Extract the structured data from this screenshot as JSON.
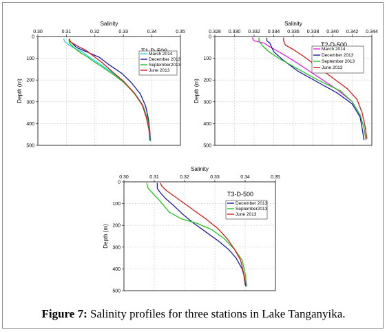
{
  "caption": {
    "label": "Figure 7:",
    "text": " Salinity profiles for three stations in Lake Tanganyika."
  },
  "chart_data": [
    {
      "type": "line",
      "title": "T1-D-500",
      "xlabel": "Salinity",
      "ylabel": "Depth (m)",
      "xlim": [
        0.3,
        0.35
      ],
      "ylim": [
        0,
        500
      ],
      "x_ticks": [
        "0.30",
        "0.31",
        "0.32",
        "0.33",
        "0.34",
        "0.35"
      ],
      "y_ticks": [
        "0",
        "100",
        "200",
        "300",
        "400",
        "500"
      ],
      "y_inverted": true,
      "legend_position": "right",
      "series": [
        {
          "name": "March 2014",
          "color": "#22d3ee",
          "x": [
            0.309,
            0.3095,
            0.311,
            0.313,
            0.3155,
            0.3175,
            0.321,
            0.3255,
            0.33,
            0.334,
            0.337,
            0.3385,
            0.339,
            0.3392
          ],
          "y": [
            10,
            25,
            40,
            55,
            70,
            90,
            120,
            160,
            210,
            260,
            320,
            380,
            440,
            480
          ]
        },
        {
          "name": "December 2013",
          "color": "#1a1aa6",
          "x": [
            0.311,
            0.311,
            0.312,
            0.3135,
            0.317,
            0.3215,
            0.325,
            0.3295,
            0.333,
            0.336,
            0.3378,
            0.3388,
            0.3393,
            0.3395
          ],
          "y": [
            10,
            20,
            30,
            50,
            70,
            95,
            130,
            170,
            215,
            265,
            320,
            380,
            440,
            480
          ]
        },
        {
          "name": "September2013",
          "color": "#22c322",
          "x": [
            0.311,
            0.311,
            0.313,
            0.315,
            0.3175,
            0.319,
            0.322,
            0.3265,
            0.3305,
            0.334,
            0.3368,
            0.3385,
            0.3392,
            0.3394
          ],
          "y": [
            10,
            30,
            55,
            75,
            95,
            110,
            135,
            175,
            215,
            265,
            320,
            380,
            440,
            480
          ]
        },
        {
          "name": "June 2013",
          "color": "#d61a1a",
          "x": [
            0.311,
            0.3115,
            0.314,
            0.317,
            0.3195,
            0.3225,
            0.326,
            0.33,
            0.3335,
            0.3365,
            0.338,
            0.339,
            0.3393
          ],
          "y": [
            10,
            25,
            45,
            65,
            90,
            120,
            160,
            205,
            255,
            310,
            370,
            430,
            475
          ]
        }
      ]
    },
    {
      "type": "line",
      "title": "T2-D-500",
      "xlabel": "Salinity",
      "ylabel": "Depth (m)",
      "xlim": [
        0.328,
        0.344
      ],
      "ylim": [
        0,
        500
      ],
      "x_ticks": [
        "0.328",
        "0.330",
        "0.332",
        "0.334",
        "0.336",
        "0.338",
        "0.340",
        "0.342",
        "0.344"
      ],
      "y_ticks": [
        "0",
        "100",
        "200",
        "300",
        "400",
        "500"
      ],
      "y_inverted": true,
      "legend_position": "right",
      "series": [
        {
          "name": "March 2014",
          "color": "#e020e0",
          "x": [
            0.3318,
            0.332,
            0.333,
            0.3335,
            0.3345,
            0.336,
            0.3375,
            0.339,
            0.3405,
            0.342,
            0.3428,
            0.3432,
            0.3434
          ],
          "y": [
            5,
            20,
            30,
            45,
            70,
            110,
            155,
            200,
            245,
            300,
            360,
            420,
            475
          ]
        },
        {
          "name": "December 2013",
          "color": "#1a1aa6",
          "x": [
            0.3333,
            0.3333,
            0.3336,
            0.3338,
            0.334,
            0.335,
            0.3365,
            0.3385,
            0.3405,
            0.342,
            0.3428,
            0.343,
            0.3432
          ],
          "y": [
            5,
            20,
            30,
            50,
            70,
            110,
            160,
            210,
            260,
            310,
            370,
            420,
            475
          ]
        },
        {
          "name": "September 2013",
          "color": "#22c322",
          "x": [
            0.3325,
            0.3325,
            0.3328,
            0.3335,
            0.3345,
            0.3365,
            0.3385,
            0.3408,
            0.342,
            0.3428,
            0.3432,
            0.3434
          ],
          "y": [
            5,
            20,
            40,
            70,
            100,
            150,
            200,
            250,
            300,
            360,
            420,
            475
          ]
        },
        {
          "name": "June 2013",
          "color": "#d61a1a",
          "x": [
            0.335,
            0.335,
            0.3352,
            0.336,
            0.337,
            0.3385,
            0.34,
            0.3415,
            0.3425,
            0.343,
            0.3433,
            0.3435
          ],
          "y": [
            5,
            20,
            40,
            60,
            90,
            140,
            190,
            240,
            290,
            350,
            410,
            470
          ]
        }
      ]
    },
    {
      "type": "line",
      "title": "T3-D-500",
      "xlabel": "Salinity",
      "ylabel": "Depth (m)",
      "xlim": [
        0.3,
        0.35
      ],
      "ylim": [
        0,
        500
      ],
      "x_ticks": [
        "0.30",
        "0.31",
        "0.32",
        "0.33",
        "0.34",
        "0.35"
      ],
      "y_ticks": [
        "0",
        "100",
        "200",
        "300",
        "400",
        "500"
      ],
      "y_inverted": true,
      "legend_position": "right",
      "series": [
        {
          "name": "December 2013",
          "color": "#1a1aa6",
          "x": [
            0.311,
            0.311,
            0.312,
            0.314,
            0.3165,
            0.3195,
            0.323,
            0.327,
            0.331,
            0.3345,
            0.337,
            0.339,
            0.3398,
            0.3402
          ],
          "y": [
            5,
            30,
            50,
            80,
            110,
            150,
            190,
            230,
            270,
            310,
            350,
            400,
            440,
            480
          ]
        },
        {
          "name": "September2013",
          "color": "#22c322",
          "x": [
            0.3075,
            0.308,
            0.31,
            0.312,
            0.315,
            0.319,
            0.324,
            0.329,
            0.333,
            0.3365,
            0.339,
            0.34,
            0.3405
          ],
          "y": [
            5,
            30,
            60,
            90,
            140,
            170,
            190,
            220,
            260,
            310,
            360,
            420,
            480
          ]
        },
        {
          "name": "June 2013",
          "color": "#d61a1a",
          "x": [
            0.312,
            0.3125,
            0.314,
            0.3165,
            0.3195,
            0.323,
            0.327,
            0.331,
            0.334,
            0.3365,
            0.3385,
            0.3395,
            0.34
          ],
          "y": [
            5,
            20,
            40,
            65,
            95,
            130,
            170,
            215,
            260,
            310,
            360,
            420,
            475
          ]
        }
      ]
    }
  ]
}
